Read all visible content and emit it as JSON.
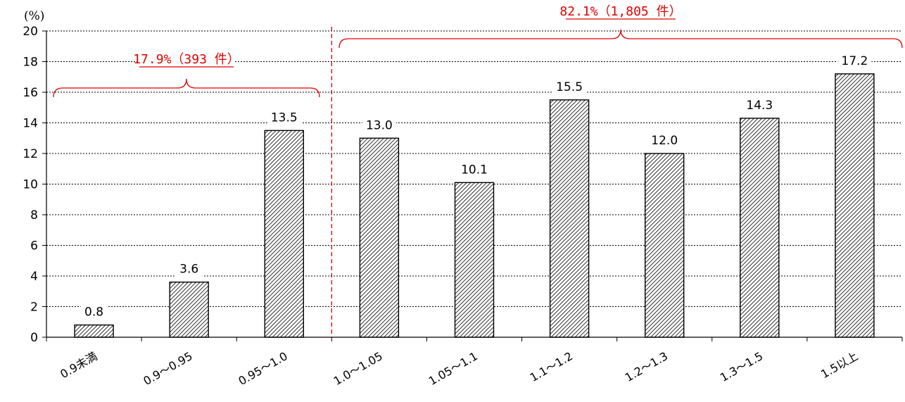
{
  "chart_data": {
    "type": "bar",
    "unit_label": "(%)",
    "categories": [
      "0.9未満",
      "0.9〜0.95",
      "0.95〜1.0",
      "1.0〜1.05",
      "1.05〜1.1",
      "1.1〜1.2",
      "1.2〜1.3",
      "1.3〜1.5",
      "1.5以上"
    ],
    "values": [
      0.8,
      3.6,
      13.5,
      13.0,
      10.1,
      15.5,
      12.0,
      14.3,
      17.2
    ],
    "value_labels": [
      "0.8",
      "3.6",
      "13.5",
      "13.0",
      "10.1",
      "15.5",
      "12.0",
      "14.3",
      "17.2"
    ],
    "yticks": [
      "0",
      "2",
      "4",
      "6",
      "8",
      "10",
      "12",
      "14",
      "16",
      "18",
      "20"
    ],
    "ylim": [
      0,
      20
    ],
    "grid": true,
    "bar_pattern": "diagonal-hatch",
    "divider_after_category_index": 2,
    "annotations": [
      {
        "text": "17.9%（393 件）",
        "from_index": 0,
        "to_index": 2,
        "color": "#e00000"
      },
      {
        "text": "82.1%（1,805 件）",
        "from_index": 3,
        "to_index": 8,
        "color": "#e00000"
      }
    ],
    "title": "",
    "xlabel": "",
    "ylabel": ""
  }
}
